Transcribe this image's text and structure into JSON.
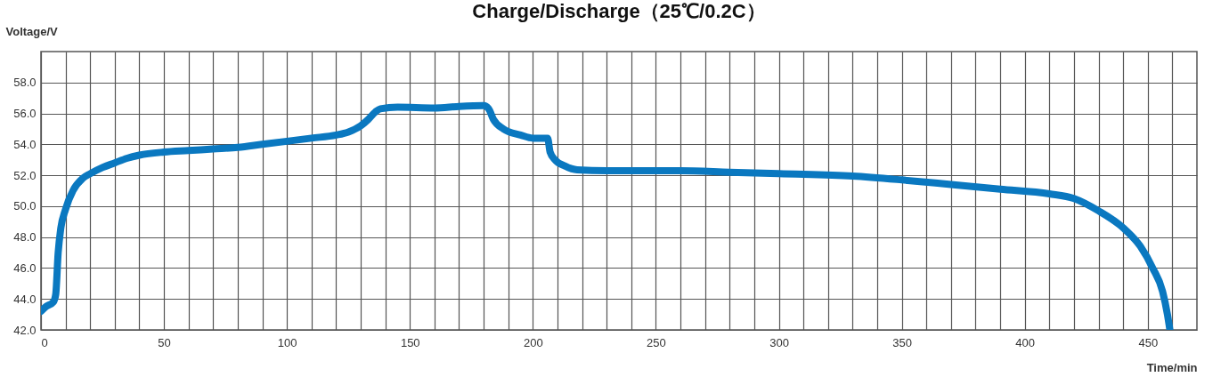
{
  "chart_data": {
    "type": "line",
    "title": "Charge/Discharge（25℃/0.2C）",
    "xlabel": "Time/min",
    "ylabel": "Voltage/V",
    "x": [
      0,
      2,
      5,
      6,
      7,
      8,
      10,
      13,
      17,
      20,
      25,
      30,
      35,
      40,
      50,
      60,
      70,
      80,
      90,
      100,
      110,
      120,
      125,
      130,
      133,
      136,
      138,
      145,
      160,
      170,
      180,
      182,
      184,
      188,
      195,
      200,
      206,
      207,
      209,
      213,
      218,
      230,
      260,
      280,
      300,
      330,
      350,
      370,
      390,
      410,
      420,
      430,
      440,
      447,
      452,
      456,
      458,
      459
    ],
    "series": [
      {
        "color": "#0a78c0",
        "values": [
          43.2,
          43.5,
          43.8,
          44.3,
          47.0,
          48.5,
          49.8,
          51.0,
          51.8,
          52.1,
          52.5,
          52.8,
          53.1,
          53.3,
          53.5,
          53.6,
          53.7,
          53.8,
          54.0,
          54.2,
          54.4,
          54.6,
          54.8,
          55.2,
          55.6,
          56.1,
          56.3,
          56.4,
          56.35,
          56.45,
          56.5,
          56.3,
          55.6,
          55.0,
          54.6,
          54.4,
          54.4,
          53.5,
          53.0,
          52.6,
          52.35,
          52.3,
          52.3,
          52.2,
          52.1,
          51.95,
          51.7,
          51.4,
          51.1,
          50.8,
          50.5,
          49.7,
          48.6,
          47.4,
          46.0,
          44.5,
          43.0,
          42.0
        ]
      }
    ],
    "xlim": [
      0,
      470
    ],
    "xticks": [
      0,
      {
        "value": 10,
        "label": null
      },
      {
        "value": 20,
        "label": null
      },
      {
        "value": 30,
        "label": null
      },
      {
        "value": 40,
        "label": null
      },
      50,
      {
        "value": 60,
        "label": null
      },
      {
        "value": 70,
        "label": null
      },
      {
        "value": 80,
        "label": null
      },
      {
        "value": 90,
        "label": null
      },
      100,
      {
        "value": 110,
        "label": null
      },
      {
        "value": 120,
        "label": null
      },
      {
        "value": 130,
        "label": null
      },
      {
        "value": 140,
        "label": null
      },
      150,
      {
        "value": 160,
        "label": null
      },
      {
        "value": 170,
        "label": null
      },
      {
        "value": 180,
        "label": null
      },
      {
        "value": 190,
        "label": null
      },
      200,
      {
        "value": 210,
        "label": null
      },
      {
        "value": 220,
        "label": null
      },
      {
        "value": 230,
        "label": null
      },
      {
        "value": 240,
        "label": null
      },
      250,
      {
        "value": 260,
        "label": null
      },
      {
        "value": 270,
        "label": null
      },
      {
        "value": 280,
        "label": null
      },
      {
        "value": 290,
        "label": null
      },
      300,
      {
        "value": 310,
        "label": null
      },
      {
        "value": 320,
        "label": null
      },
      {
        "value": 330,
        "label": null
      },
      {
        "value": 340,
        "label": null
      },
      350,
      {
        "value": 360,
        "label": null
      },
      {
        "value": 370,
        "label": null
      },
      {
        "value": 380,
        "label": null
      },
      {
        "value": 390,
        "label": null
      },
      400,
      {
        "value": 410,
        "label": null
      },
      {
        "value": 420,
        "label": null
      },
      {
        "value": 430,
        "label": null
      },
      {
        "value": 440,
        "label": null
      },
      450,
      {
        "value": 460,
        "label": null
      }
    ],
    "ylim": [
      42,
      60
    ],
    "yticks": [
      {
        "value": 42,
        "label": "42.0"
      },
      {
        "value": 44,
        "label": "44.0"
      },
      {
        "value": 46,
        "label": "46.0"
      },
      {
        "value": 48,
        "label": "48.0"
      },
      {
        "value": 50,
        "label": "50.0"
      },
      {
        "value": 52,
        "label": "52.0"
      },
      {
        "value": 54,
        "label": "54.0"
      },
      {
        "value": 56,
        "label": "56.0"
      },
      {
        "value": 58,
        "label": "58.0"
      }
    ],
    "grid": true,
    "line_style": "solid"
  }
}
